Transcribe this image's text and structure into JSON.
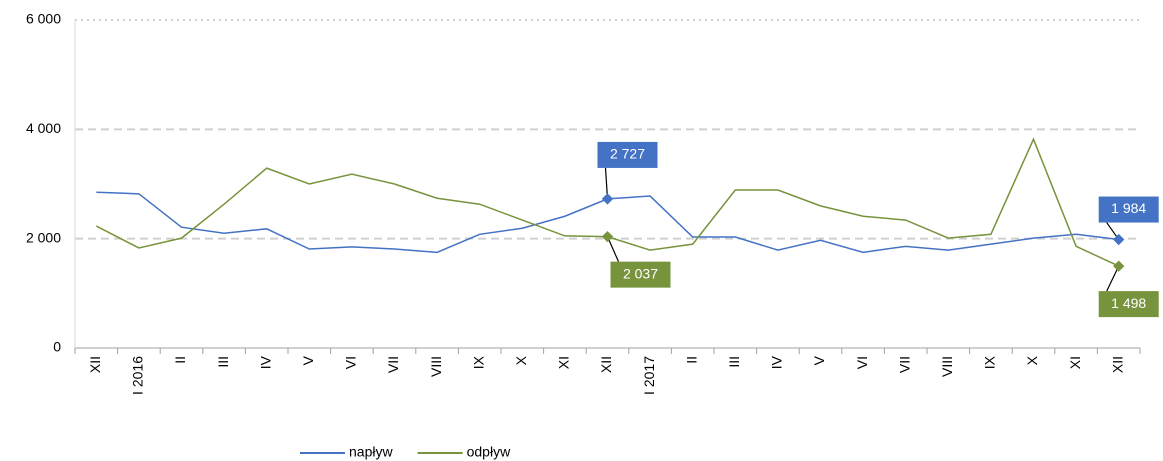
{
  "chart_data": {
    "type": "line",
    "categories": [
      "XII",
      "I 2016",
      "II",
      "III",
      "IV",
      "V",
      "VI",
      "VII",
      "VIII",
      "IX",
      "X",
      "XI",
      "XII",
      "I 2017",
      "II",
      "III",
      "IV",
      "V",
      "VI",
      "VII",
      "VIII",
      "IX",
      "X",
      "XI",
      "XII"
    ],
    "series": [
      {
        "name": "napływ",
        "color": "#4472c4",
        "values": [
          2850,
          2820,
          2210,
          2100,
          2180,
          1810,
          1850,
          1810,
          1750,
          2080,
          2190,
          2410,
          2727,
          2780,
          2030,
          2030,
          1790,
          1970,
          1750,
          1860,
          1790,
          1900,
          2010,
          2080,
          1984
        ],
        "value_labels": [
          null,
          null,
          null,
          null,
          null,
          null,
          null,
          null,
          null,
          null,
          null,
          null,
          "2 727",
          null,
          null,
          null,
          null,
          null,
          null,
          null,
          null,
          null,
          null,
          null,
          "1 984"
        ]
      },
      {
        "name": "odpływ",
        "color": "#77933c",
        "values": [
          2230,
          1830,
          2010,
          2630,
          3290,
          3000,
          3180,
          3000,
          2740,
          2630,
          2340,
          2050,
          2037,
          1790,
          1900,
          2890,
          2890,
          2600,
          2410,
          2340,
          2010,
          2080,
          3820,
          1860,
          1498
        ],
        "value_labels": [
          null,
          null,
          null,
          null,
          null,
          null,
          null,
          null,
          null,
          null,
          null,
          null,
          "2 037",
          null,
          null,
          null,
          null,
          null,
          null,
          null,
          null,
          null,
          null,
          null,
          "1 498"
        ]
      }
    ],
    "ylim": [
      0,
      6000
    ],
    "yticks": [
      0,
      {
        "value": 2000,
        "label": "2 000"
      },
      {
        "value": 4000,
        "label": "4 000"
      },
      {
        "value": 6000,
        "label": "6 000"
      }
    ],
    "grid": true,
    "legend": "bottom"
  }
}
